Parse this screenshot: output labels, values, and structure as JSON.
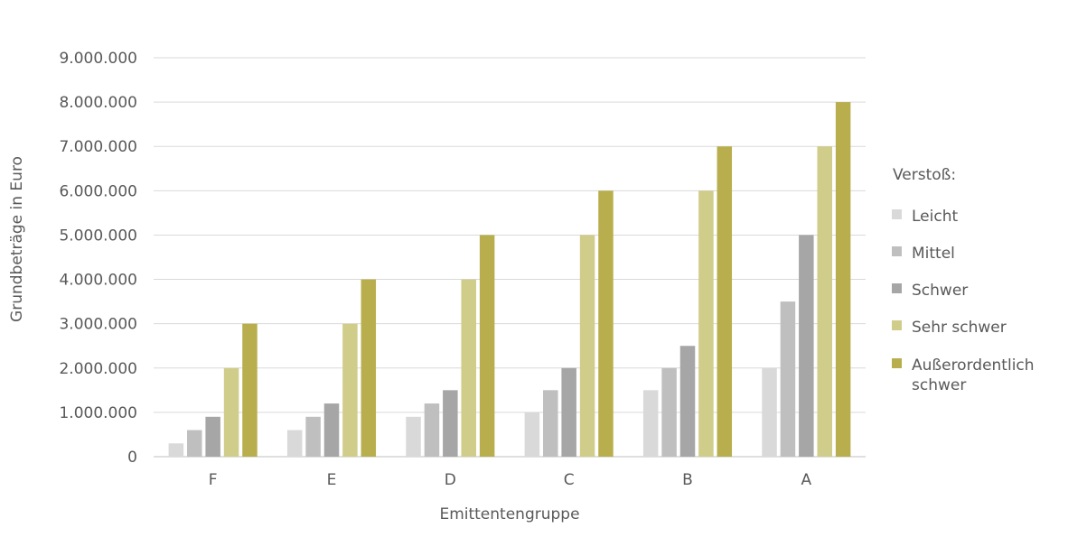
{
  "chart_data": {
    "type": "bar",
    "xlabel": "Emittentengruppe",
    "ylabel": "Grundbeträge in Euro",
    "categories": [
      "F",
      "E",
      "D",
      "C",
      "B",
      "A"
    ],
    "ylim": [
      0,
      9000000
    ],
    "yticks": [
      0,
      1000000,
      2000000,
      3000000,
      4000000,
      5000000,
      6000000,
      7000000,
      8000000,
      9000000
    ],
    "ytick_labels": [
      "0",
      "1.000.000",
      "2.000.000",
      "3.000.000",
      "4.000.000",
      "5.000.000",
      "6.000.000",
      "7.000.000",
      "8.000.000",
      "9.000.000"
    ],
    "grid": true,
    "legend": {
      "title": "Verstoß:",
      "position": "right"
    },
    "series": [
      {
        "name": "Leicht",
        "color": "#d9d9d9",
        "values": [
          300000,
          600000,
          900000,
          1000000,
          1500000,
          2000000
        ]
      },
      {
        "name": "Mittel",
        "color": "#bfbfbf",
        "values": [
          600000,
          900000,
          1200000,
          1500000,
          2000000,
          3500000
        ]
      },
      {
        "name": "Schwer",
        "color": "#a6a6a6",
        "values": [
          900000,
          1200000,
          1500000,
          2000000,
          2500000,
          5000000
        ]
      },
      {
        "name": "Sehr schwer",
        "color": "#d0cc8a",
        "values": [
          2000000,
          3000000,
          4000000,
          5000000,
          6000000,
          7000000
        ]
      },
      {
        "name": "Außerordentlich schwer",
        "name_lines": [
          "Außerordentlich",
          "schwer"
        ],
        "color": "#b8ae4e",
        "values": [
          3000000,
          4000000,
          5000000,
          6000000,
          7000000,
          8000000
        ]
      }
    ]
  }
}
